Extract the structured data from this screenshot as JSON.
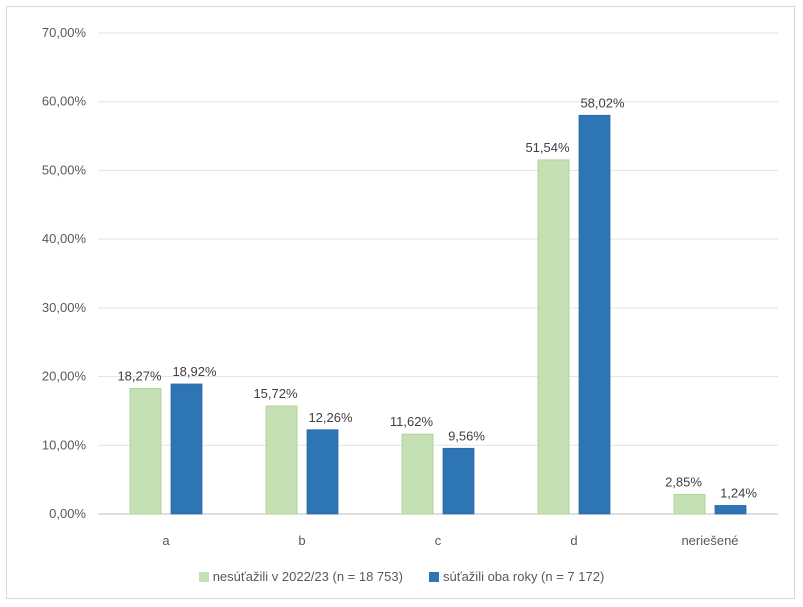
{
  "chart_data": {
    "type": "bar",
    "categories": [
      "a",
      "b",
      "c",
      "d",
      "neriešené"
    ],
    "series": [
      {
        "name": "nesúťažili v 2022/23 (n = 18 753)",
        "color": "#c5e0b4",
        "values": [
          18.27,
          15.72,
          11.62,
          51.54,
          2.85
        ],
        "labels": [
          "18,27%",
          "15,72%",
          "11,62%",
          "51,54%",
          "2,85%"
        ]
      },
      {
        "name": "súťažili oba roky (n = 7 172)",
        "color": "#2e75b6",
        "values": [
          18.92,
          12.26,
          9.56,
          58.02,
          1.24
        ],
        "labels": [
          "18,92%",
          "12,26%",
          "9,56%",
          "58,02%",
          "1,24%"
        ]
      }
    ],
    "ylim": [
      0,
      70
    ],
    "yticks": [
      "0,00%",
      "10,00%",
      "20,00%",
      "30,00%",
      "40,00%",
      "50,00%",
      "60,00%",
      "70,00%"
    ],
    "grid": true,
    "legend": "bottom"
  }
}
